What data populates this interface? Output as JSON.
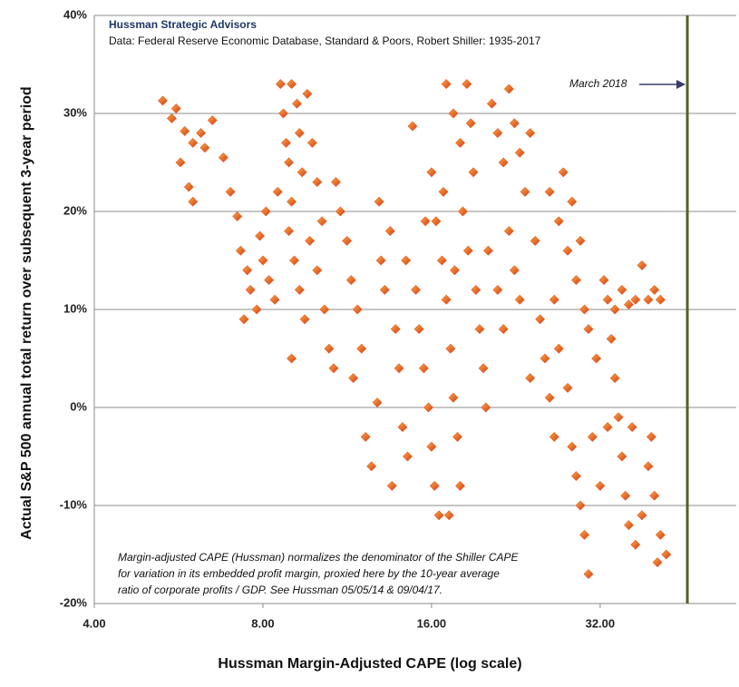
{
  "chart_data": {
    "type": "scatter",
    "title": "Hussman Strategic Advisors",
    "subtitle": "Data: Federal Reserve Economic Database, Standard & Poors, Robert Shiller: 1935-2017",
    "x_label": "Hussman Margin-Adjusted CAPE (log scale)",
    "y_label": "Actual S&P 500 annual total return over subsequent 3-year period",
    "annotation": [
      "Margin-adjusted CAPE (Hussman) normalizes the denominator of the Shiller CAPE",
      "for variation in its embedded profit margin, proxied here by the 10-year average",
      "ratio of corporate profits / GDP. See Hussman 05/05/14 & 09/04/17."
    ],
    "marker_line": {
      "label": "March 2018",
      "x": 45.8,
      "color": "#4f6228"
    },
    "x_log_scale": true,
    "grid": true,
    "color": "#e8541c",
    "xlim": [
      4,
      56
    ],
    "xticks": [
      {
        "value": 4,
        "label": "4.00"
      },
      {
        "value": 8,
        "label": "8.00"
      },
      {
        "value": 16,
        "label": "16.00"
      },
      {
        "value": 32,
        "label": "32.00"
      }
    ],
    "ylim": [
      -20,
      40
    ],
    "yticks": [
      {
        "value": -20,
        "label": "-20%"
      },
      {
        "value": -10,
        "label": "-10%"
      },
      {
        "value": 0,
        "label": "0%"
      },
      {
        "value": 10,
        "label": "10%"
      },
      {
        "value": 20,
        "label": "20%"
      },
      {
        "value": 30,
        "label": "30%"
      },
      {
        "value": 40,
        "label": "40%"
      }
    ],
    "x": [
      5.3,
      5.5,
      5.6,
      5.8,
      6.0,
      6.2,
      6.5,
      5.7,
      5.9,
      6.0,
      6.3,
      6.8,
      7.0,
      7.2,
      7.3,
      7.5,
      7.6,
      7.8,
      7.4,
      7.9,
      8.1,
      8.0,
      8.2,
      8.4,
      8.6,
      8.7,
      8.8,
      8.9,
      9.0,
      9.2,
      9.3,
      9.4,
      9.0,
      8.9,
      9.1,
      9.3,
      9.5,
      9.0,
      9.6,
      9.8,
      10.0,
      10.2,
      10.0,
      10.3,
      10.5,
      10.7,
      9.7,
      8.5,
      10.8,
      11.0,
      11.3,
      11.5,
      11.8,
      12.0,
      11.6,
      12.2,
      12.5,
      12.8,
      13.0,
      13.2,
      13.5,
      13.8,
      14.0,
      14.2,
      14.5,
      13.6,
      12.9,
      14.4,
      14.8,
      15.0,
      15.2,
      15.5,
      15.8,
      16.0,
      16.2,
      16.5,
      15.6,
      16.0,
      16.3,
      16.7,
      17.0,
      17.3,
      17.5,
      17.8,
      18.0,
      17.2,
      17.0,
      17.5,
      18.0,
      18.5,
      18.8,
      19.0,
      18.2,
      18.6,
      19.2,
      19.5,
      19.8,
      20.0,
      16.8,
      17.6,
      20.5,
      21.0,
      21.5,
      22.0,
      22.5,
      23.0,
      23.5,
      22.0,
      22.5,
      23.0,
      21.0,
      21.5,
      20.2,
      24.0,
      24.5,
      25.0,
      25.5,
      26.0,
      26.5,
      24.0,
      26.0,
      27.0,
      28.0,
      29.0,
      30.0,
      27.5,
      28.5,
      29.5,
      26.5,
      27.0,
      28.0,
      28.5,
      29.0,
      29.5,
      30.0,
      30.5,
      31.0,
      31.5,
      30.5,
      32.0,
      32.5,
      33.0,
      34.0,
      35.0,
      36.0,
      37.0,
      38.0,
      39.0,
      40.0,
      41.0,
      33.5,
      34.0,
      34.5,
      35.0,
      35.5,
      36.0,
      37.0,
      38.0,
      39.0,
      40.0,
      41.0,
      42.0,
      40.5,
      39.5,
      33.0,
      36.5
    ],
    "values": [
      31.3,
      29.5,
      30.5,
      28.2,
      27,
      28,
      29.3,
      25,
      22.5,
      21,
      26.5,
      25.5,
      22,
      19.5,
      16,
      14,
      12,
      10,
      9,
      17.5,
      20,
      15,
      13,
      11,
      33,
      30,
      27,
      25,
      33,
      31,
      28,
      24,
      21,
      18,
      15,
      12,
      9,
      5,
      32,
      27,
      23,
      19,
      14,
      10,
      6,
      4,
      17,
      22,
      23,
      20,
      17,
      13,
      10,
      6,
      3,
      -3,
      -6,
      0.5,
      15,
      12,
      18,
      8,
      4,
      -2,
      -5,
      -8,
      21,
      15,
      28.7,
      12,
      8,
      4,
      0,
      -4,
      -8,
      -11,
      19,
      24,
      19,
      15,
      11,
      6,
      1,
      -3,
      -8,
      -11,
      33,
      30,
      27,
      33,
      29,
      24,
      20,
      16,
      12,
      8,
      4,
      0,
      22,
      14,
      31,
      28,
      25,
      32.5,
      29,
      26,
      22,
      18,
      14,
      11,
      12,
      8,
      16,
      28,
      17,
      9,
      5,
      1,
      -3,
      3,
      22,
      19,
      16,
      13,
      10,
      24,
      21,
      17,
      11,
      6,
      2,
      -4,
      -7,
      -10,
      -13,
      -17,
      -3,
      5,
      8,
      -8,
      13,
      11,
      10,
      12,
      10.5,
      11,
      14.5,
      11,
      12,
      11,
      7,
      3,
      -1,
      -5,
      -9,
      -12,
      -14,
      -11,
      -6,
      -9,
      -13,
      -15,
      -15.8,
      -3,
      -2,
      -2
    ]
  }
}
